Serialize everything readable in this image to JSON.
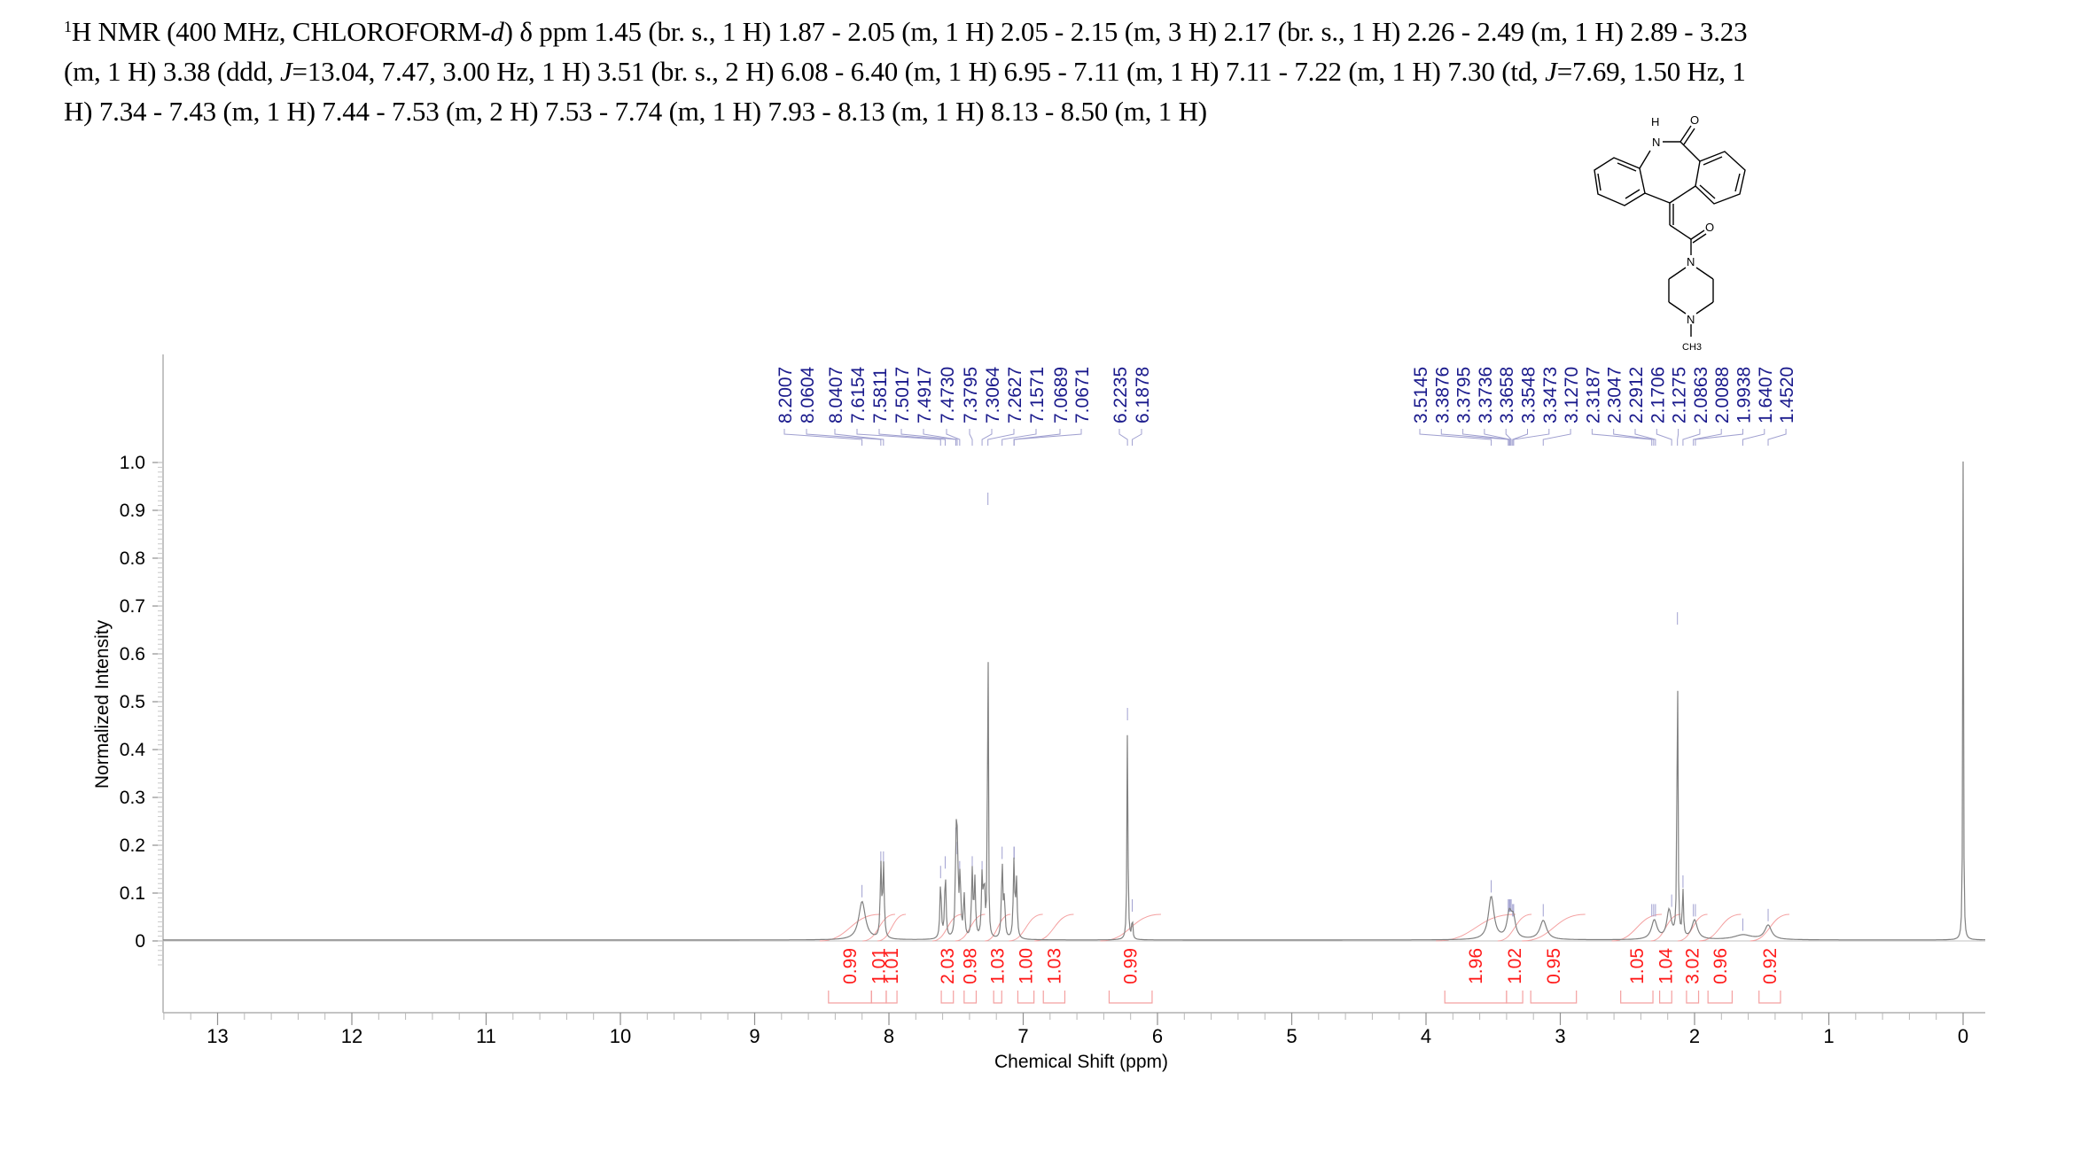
{
  "header": {
    "nucleus_sup": "1",
    "line1_prefix": "H NMR (400 MHz, CHLOROFORM-",
    "solvent_italic": "d",
    "line1_after_solvent": ") δ ppm 1.45 (br. s., 1 H) 1.87 - 2.05 (m, 1 H) 2.05 - 2.15 (m, 3 H) 2.17 (br. s., 1 H) 2.26 - 2.49 (m, 1 H) 2.89 - 3.23",
    "line2_a": "(m, 1 H) 3.38 (ddd, ",
    "line2_j1": "J",
    "line2_b": "=13.04, 7.47, 3.00 Hz, 1 H) 3.51 (br. s., 2 H) 6.08 - 6.40 (m, 1 H) 6.95 - 7.11 (m, 1 H) 7.11 - 7.22 (m, 1 H) 7.30 (td,  ",
    "line2_j2": "J",
    "line2_c": "=7.69, 1.50 Hz, 1",
    "line3": "H) 7.34 - 7.43 (m, 1 H) 7.44 - 7.53 (m, 2 H) 7.53 - 7.74 (m, 1 H) 7.93 - 8.13 (m, 1 H) 8.13 - 8.50 (m, 1 H)"
  },
  "structure": {
    "atoms": {
      "nh_h": "H",
      "nh_n": "N",
      "amide_o": "O",
      "ketone_o": "O",
      "pip_n1": "N",
      "pip_n4": "N",
      "methyl": "CH3"
    }
  },
  "colors": {
    "spectrum": "#808080",
    "peak_labels": "#1a1a8c",
    "peak_lines": "#a0a0d0",
    "integrals": "#ff3333",
    "integral_lines": "#f4a0a0",
    "axis": "#b0b0b0"
  },
  "chart_data": {
    "type": "line",
    "title": "1H NMR (400 MHz, CHLOROFORM-d)",
    "xlabel": "Chemical Shift (ppm)",
    "ylabel": "Normalized Intensity",
    "xlim": [
      13.4,
      -0.2
    ],
    "ylim": [
      0,
      1.0
    ],
    "x_reversed": true,
    "x_ticks": [
      "13",
      "12",
      "11",
      "10",
      "9",
      "8",
      "7",
      "6",
      "5",
      "4",
      "3",
      "2",
      "1",
      "0"
    ],
    "y_ticks": [
      "0",
      "0.1",
      "0.2",
      "0.3",
      "0.4",
      "0.5",
      "0.6",
      "0.7",
      "0.8",
      "0.9",
      "1.0"
    ],
    "grid": false,
    "peak_picks": [
      "8.2007",
      "8.0604",
      "8.0407",
      "7.6154",
      "7.5811",
      "7.5017",
      "7.4917",
      "7.4730",
      "7.3795",
      "7.3064",
      "7.2627",
      "7.1571",
      "7.0689",
      "7.0671",
      "6.2235",
      "6.1878",
      "3.5145",
      "3.3876",
      "3.3795",
      "3.3736",
      "3.3658",
      "3.3548",
      "3.3473",
      "3.1270",
      "2.3187",
      "2.3047",
      "2.2912",
      "2.1706",
      "2.1275",
      "2.0863",
      "2.0088",
      "1.9938",
      "1.6407",
      "1.4520"
    ],
    "peaks": [
      {
        "ppm": 8.2,
        "intensity": 0.08,
        "width": 0.03
      },
      {
        "ppm": 8.06,
        "intensity": 0.15,
        "width": 0.006
      },
      {
        "ppm": 8.04,
        "intensity": 0.15,
        "width": 0.006
      },
      {
        "ppm": 7.615,
        "intensity": 0.12,
        "width": 0.006
      },
      {
        "ppm": 7.58,
        "intensity": 0.14,
        "width": 0.006
      },
      {
        "ppm": 7.5,
        "intensity": 0.2,
        "width": 0.006
      },
      {
        "ppm": 7.49,
        "intensity": 0.17,
        "width": 0.006
      },
      {
        "ppm": 7.47,
        "intensity": 0.13,
        "width": 0.006
      },
      {
        "ppm": 7.44,
        "intensity": 0.09,
        "width": 0.006
      },
      {
        "ppm": 7.38,
        "intensity": 0.14,
        "width": 0.006
      },
      {
        "ppm": 7.36,
        "intensity": 0.12,
        "width": 0.006
      },
      {
        "ppm": 7.306,
        "intensity": 0.13,
        "width": 0.006
      },
      {
        "ppm": 7.29,
        "intensity": 0.11,
        "width": 0.006
      },
      {
        "ppm": 7.263,
        "intensity": 0.9,
        "width": 0.003
      },
      {
        "ppm": 7.157,
        "intensity": 0.16,
        "width": 0.006
      },
      {
        "ppm": 7.14,
        "intensity": 0.08,
        "width": 0.006
      },
      {
        "ppm": 7.069,
        "intensity": 0.16,
        "width": 0.006
      },
      {
        "ppm": 7.05,
        "intensity": 0.12,
        "width": 0.006
      },
      {
        "ppm": 6.2235,
        "intensity": 0.45,
        "width": 0.004
      },
      {
        "ppm": 6.1878,
        "intensity": 0.05,
        "width": 0.004
      },
      {
        "ppm": 3.5145,
        "intensity": 0.09,
        "width": 0.025
      },
      {
        "ppm": 3.38,
        "intensity": 0.05,
        "width": 0.02
      },
      {
        "ppm": 3.35,
        "intensity": 0.04,
        "width": 0.02
      },
      {
        "ppm": 3.127,
        "intensity": 0.04,
        "width": 0.03
      },
      {
        "ppm": 2.3,
        "intensity": 0.04,
        "width": 0.025
      },
      {
        "ppm": 2.19,
        "intensity": 0.06,
        "width": 0.02
      },
      {
        "ppm": 2.1275,
        "intensity": 0.65,
        "width": 0.004
      },
      {
        "ppm": 2.087,
        "intensity": 0.1,
        "width": 0.005
      },
      {
        "ppm": 2.0,
        "intensity": 0.04,
        "width": 0.025
      },
      {
        "ppm": 1.64,
        "intensity": 0.01,
        "width": 0.08
      },
      {
        "ppm": 1.452,
        "intensity": 0.03,
        "width": 0.03
      },
      {
        "ppm": 0.0,
        "intensity": 1.0,
        "width": 0.003
      }
    ],
    "integrals": [
      {
        "value": "0.99",
        "from": 8.45,
        "to": 8.13
      },
      {
        "value": "1.01",
        "from": 8.13,
        "to": 8.02
      },
      {
        "value": "1.01",
        "from": 8.02,
        "to": 7.94
      },
      {
        "value": "2.03",
        "from": 7.61,
        "to": 7.52
      },
      {
        "value": "0.98",
        "from": 7.44,
        "to": 7.35
      },
      {
        "value": "1.03",
        "from": 7.22,
        "to": 7.16
      },
      {
        "value": "1.00",
        "from": 7.04,
        "to": 6.92
      },
      {
        "value": "1.03",
        "from": 6.85,
        "to": 6.69
      },
      {
        "value": "0.99",
        "from": 6.36,
        "to": 6.04
      },
      {
        "value": "1.96",
        "from": 3.86,
        "to": 3.4
      },
      {
        "value": "1.02",
        "from": 3.4,
        "to": 3.28
      },
      {
        "value": "0.95",
        "from": 3.22,
        "to": 2.88
      },
      {
        "value": "1.05",
        "from": 2.55,
        "to": 2.31
      },
      {
        "value": "1.04",
        "from": 2.26,
        "to": 2.17
      },
      {
        "value": "3.02",
        "from": 2.06,
        "to": 1.97
      },
      {
        "value": "0.96",
        "from": 1.9,
        "to": 1.72
      },
      {
        "value": "0.92",
        "from": 1.52,
        "to": 1.36
      }
    ]
  }
}
